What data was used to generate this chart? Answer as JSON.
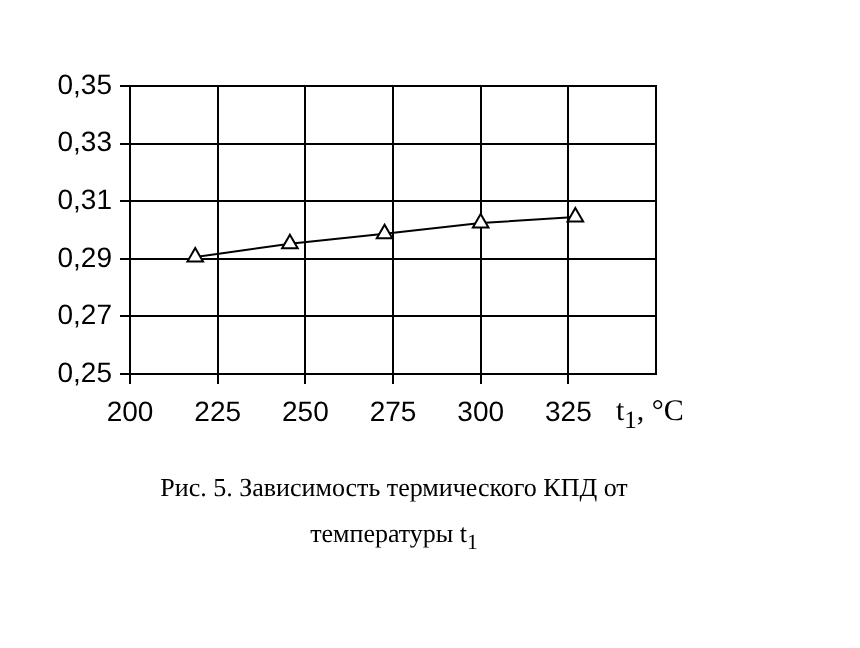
{
  "chart_data": {
    "type": "line",
    "x": [
      218.6,
      245.6,
      272.6,
      300,
      327
    ],
    "series": [
      {
        "color": "#000000",
        "values": [
          0.2906,
          0.2952,
          0.2987,
          0.3024,
          0.3045
        ]
      }
    ],
    "xlim": [
      200,
      350
    ],
    "xticks": [
      200,
      225,
      250,
      275,
      300,
      325
    ],
    "ylim": [
      0.25,
      0.35
    ],
    "yticks": [
      {
        "value": 0.25,
        "label": "0,25"
      },
      {
        "value": 0.27,
        "label": "0,27"
      },
      {
        "value": 0.29,
        "label": "0,29"
      },
      {
        "value": 0.31,
        "label": "0,31"
      },
      {
        "value": 0.33,
        "label": "0,33"
      },
      {
        "value": 0.35,
        "label": "0,35"
      }
    ],
    "xlabel": "t$_{1}$, °C",
    "annotations": [
      "Рис. 5. Зависимость термического КПД от температуры t$_{1}$"
    ],
    "grid": true,
    "legend": false,
    "marker": "triangle",
    "line_style": "solid"
  }
}
